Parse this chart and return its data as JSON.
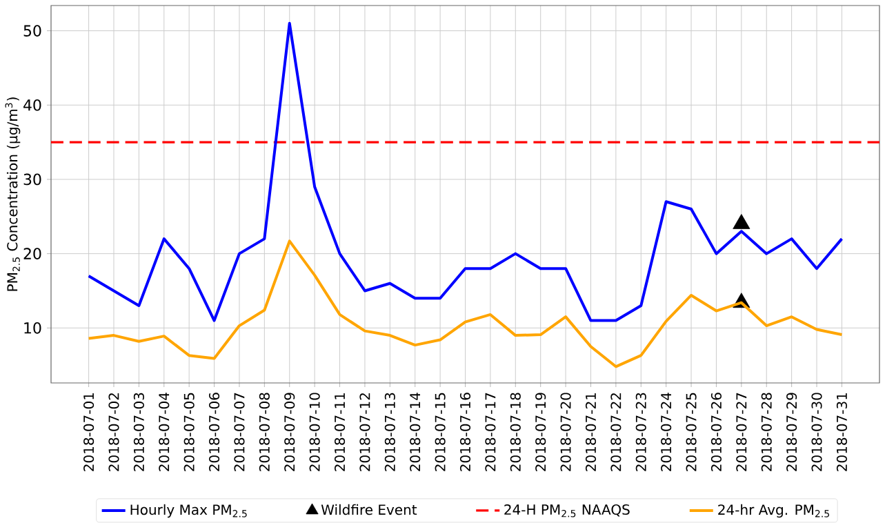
{
  "chart_data": {
    "type": "line",
    "ylabel": "PM$_{2.5}$ Concentration (µg/m$^{3}$)",
    "categories": [
      "2018-07-01",
      "2018-07-02",
      "2018-07-03",
      "2018-07-04",
      "2018-07-05",
      "2018-07-06",
      "2018-07-07",
      "2018-07-08",
      "2018-07-09",
      "2018-07-10",
      "2018-07-11",
      "2018-07-12",
      "2018-07-13",
      "2018-07-14",
      "2018-07-15",
      "2018-07-16",
      "2018-07-17",
      "2018-07-18",
      "2018-07-19",
      "2018-07-20",
      "2018-07-21",
      "2018-07-22",
      "2018-07-23",
      "2018-07-24",
      "2018-07-25",
      "2018-07-26",
      "2018-07-27",
      "2018-07-28",
      "2018-07-29",
      "2018-07-30",
      "2018-07-31"
    ],
    "series": [
      {
        "name": "Hourly Max PM$_{2.5}$",
        "color": "#0000ff",
        "values": [
          17,
          15,
          13,
          22,
          18,
          11,
          20,
          22,
          51,
          29,
          20,
          15,
          16,
          14,
          14,
          18,
          18,
          20,
          18,
          18,
          11,
          11,
          13,
          27,
          26,
          20,
          23,
          20,
          22,
          18,
          22
        ]
      },
      {
        "name": "Wildfire Event",
        "type": "scatter",
        "color": "#000000",
        "marker": "triangle",
        "values": [
          null,
          null,
          null,
          null,
          null,
          null,
          null,
          null,
          null,
          null,
          null,
          null,
          null,
          null,
          null,
          null,
          null,
          null,
          null,
          null,
          null,
          null,
          null,
          null,
          null,
          null,
          24,
          null,
          null,
          null,
          null
        ]
      },
      {
        "type": "scatter",
        "color": "#000000",
        "marker": "triangle",
        "values": [
          null,
          null,
          null,
          null,
          null,
          null,
          null,
          null,
          null,
          null,
          null,
          null,
          null,
          null,
          null,
          null,
          null,
          null,
          null,
          null,
          null,
          null,
          null,
          null,
          null,
          null,
          13.4,
          null,
          null,
          null,
          null
        ]
      },
      {
        "name": "24-hr Avg. PM$_{2.5}$",
        "color": "#ffa500",
        "values": [
          8.6,
          9.0,
          8.2,
          8.9,
          6.3,
          5.9,
          10.3,
          12.4,
          21.7,
          17.1,
          11.8,
          9.6,
          9.0,
          7.7,
          8.4,
          10.8,
          11.8,
          9.0,
          9.1,
          11.5,
          7.5,
          4.8,
          6.3,
          10.9,
          14.4,
          12.3,
          13.4,
          10.3,
          11.5,
          9.8,
          9.1
        ]
      }
    ],
    "ref_lines": [
      {
        "axis": "y",
        "value": 35,
        "label": "24-H PM$_{2.5}$ NAAQS",
        "color": "#ff0000",
        "line_style": "dashed"
      }
    ],
    "ylim": [
      2.6,
      53.4
    ],
    "yticks": [
      10,
      20,
      30,
      40,
      50
    ],
    "grid": true,
    "legend": "bottom"
  }
}
